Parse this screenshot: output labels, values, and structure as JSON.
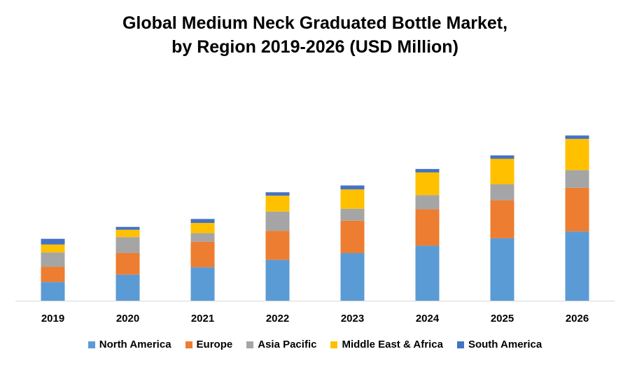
{
  "chart_data": {
    "type": "bar",
    "stacked": true,
    "title_line1": "Global Medium Neck Graduated Bottle Market,",
    "title_line2": "by Region 2019-2026 (USD Million)",
    "categories": [
      "2019",
      "2020",
      "2021",
      "2022",
      "2023",
      "2024",
      "2025",
      "2026"
    ],
    "series": [
      {
        "name": "North America",
        "color": "#5B9BD5",
        "values": [
          33,
          46,
          59,
          72,
          84,
          97,
          110,
          122
        ]
      },
      {
        "name": "Europe",
        "color": "#ED7D31",
        "values": [
          27,
          38,
          45,
          51,
          57,
          64,
          67,
          77
        ]
      },
      {
        "name": "Asia Pacific",
        "color": "#A5A5A5",
        "values": [
          25,
          28,
          15,
          34,
          21,
          25,
          28,
          31
        ]
      },
      {
        "name": "Middle East & Africa",
        "color": "#FFC000",
        "values": [
          14,
          13,
          18,
          28,
          34,
          40,
          45,
          55
        ]
      },
      {
        "name": "South America",
        "color": "#4472C4",
        "values": [
          10,
          5,
          7,
          6,
          7,
          6,
          6,
          6
        ]
      }
    ],
    "ylim": [
      0,
      300
    ],
    "xlabel": "",
    "ylabel": "",
    "grid": false,
    "y_axis_visible": false,
    "legend_position": "bottom"
  }
}
